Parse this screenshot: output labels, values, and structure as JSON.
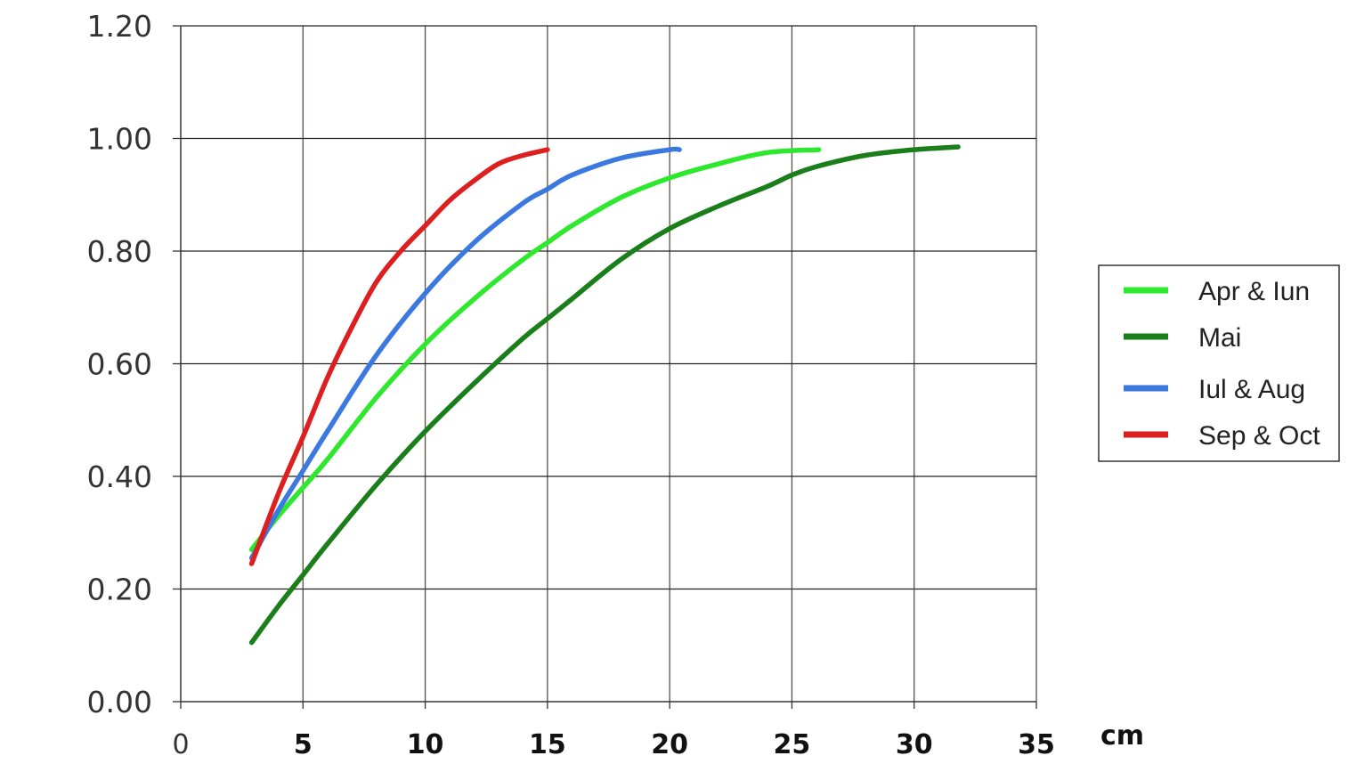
{
  "chart_data": {
    "type": "line",
    "title": "",
    "xlabel": "cm",
    "ylabel": "",
    "xlim": [
      0,
      35
    ],
    "ylim": [
      0,
      1.2
    ],
    "x_ticks": [
      "0",
      "5",
      "10",
      "15",
      "20",
      "25",
      "30",
      "35"
    ],
    "y_ticks": [
      "0.00",
      "0.20",
      "0.40",
      "0.60",
      "0.80",
      "1.00",
      "1.20"
    ],
    "grid": true,
    "legend_position": "right",
    "series": [
      {
        "name": "Apr & Iun",
        "color": "#2ee82e",
        "x": [
          2.9,
          4,
          5,
          6,
          8,
          10,
          12,
          14,
          15,
          16,
          18,
          20,
          22,
          24,
          26.1
        ],
        "y": [
          0.27,
          0.33,
          0.38,
          0.43,
          0.54,
          0.635,
          0.715,
          0.785,
          0.815,
          0.845,
          0.895,
          0.93,
          0.955,
          0.975,
          0.98
        ]
      },
      {
        "name": "Mai",
        "color": "#1a7f1a",
        "x": [
          2.9,
          4,
          5,
          6,
          8,
          10,
          12,
          14,
          15,
          16,
          18,
          20,
          22,
          24,
          25,
          26,
          28,
          30,
          31.8
        ],
        "y": [
          0.105,
          0.17,
          0.225,
          0.28,
          0.385,
          0.48,
          0.565,
          0.645,
          0.68,
          0.715,
          0.785,
          0.84,
          0.88,
          0.915,
          0.935,
          0.95,
          0.97,
          0.98,
          0.985
        ]
      },
      {
        "name": "Iul & Aug",
        "color": "#3b78e0",
        "x": [
          2.9,
          4,
          5,
          6,
          8,
          10,
          12,
          14,
          15,
          16,
          18,
          20,
          20.4
        ],
        "y": [
          0.255,
          0.34,
          0.41,
          0.48,
          0.615,
          0.725,
          0.815,
          0.885,
          0.91,
          0.935,
          0.965,
          0.98,
          0.98
        ]
      },
      {
        "name": "Sep & Oct",
        "color": "#dd1f1f",
        "x": [
          2.9,
          4,
          5,
          6,
          7,
          8,
          9,
          10,
          11,
          12,
          13,
          14,
          15
        ],
        "y": [
          0.245,
          0.37,
          0.47,
          0.575,
          0.665,
          0.745,
          0.8,
          0.845,
          0.89,
          0.925,
          0.955,
          0.97,
          0.98
        ]
      }
    ]
  }
}
